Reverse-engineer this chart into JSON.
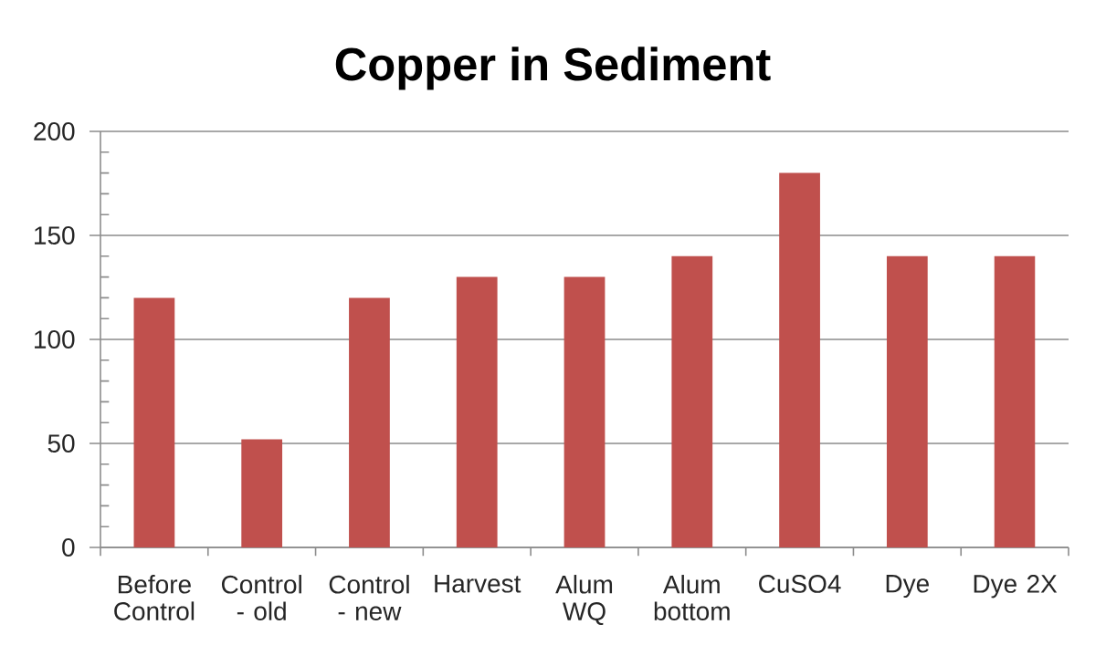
{
  "chart_data": {
    "type": "bar",
    "title": "Copper in Sediment",
    "categories": [
      "Before Control",
      "Control - old",
      "Control - new",
      "Harvest",
      "Alum WQ",
      "Alum bottom",
      "CuSO4",
      "Dye",
      "Dye 2X"
    ],
    "values": [
      120,
      52,
      120,
      130,
      130,
      140,
      180,
      140,
      140
    ],
    "color": "#c0504d",
    "ylim": [
      0,
      200
    ],
    "yticks": [
      0,
      {
        "value": 10,
        "label": null
      },
      {
        "value": 20,
        "label": null
      },
      {
        "value": 30,
        "label": null
      },
      {
        "value": 40,
        "label": null
      },
      50,
      {
        "value": 60,
        "label": null
      },
      {
        "value": 70,
        "label": null
      },
      {
        "value": 80,
        "label": null
      },
      {
        "value": 90,
        "label": null
      },
      100,
      {
        "value": 110,
        "label": null
      },
      {
        "value": 120,
        "label": null
      },
      {
        "value": 130,
        "label": null
      },
      {
        "value": 140,
        "label": null
      },
      150,
      {
        "value": 160,
        "label": null
      },
      {
        "value": 170,
        "label": null
      },
      {
        "value": 180,
        "label": null
      },
      {
        "value": 190,
        "label": null
      },
      200
    ],
    "grid": "y"
  }
}
